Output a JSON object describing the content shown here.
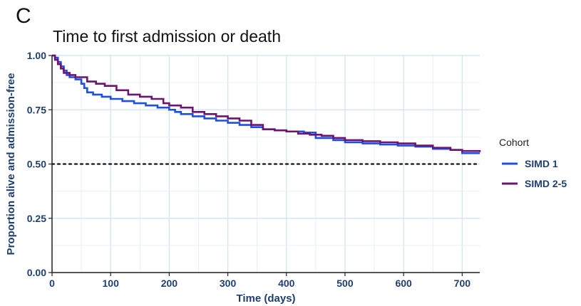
{
  "panel_label": "C",
  "chart_data": {
    "type": "line",
    "title": "Time to first admission or death",
    "xlabel": "Time (days)",
    "ylabel": "Proportion alive and admission-free",
    "xlim": [
      0,
      730
    ],
    "ylim": [
      0,
      1
    ],
    "x_ticks": [
      0,
      100,
      200,
      300,
      400,
      500,
      600,
      700
    ],
    "y_ticks": [
      0.0,
      0.25,
      0.5,
      0.75,
      1.0
    ],
    "y_tick_labels": [
      "0.00",
      "0.25",
      "0.50",
      "0.75",
      "1.00"
    ],
    "x_tick_labels": [
      "0",
      "100",
      "200",
      "300",
      "400",
      "500",
      "600",
      "700"
    ],
    "grid": true,
    "reference_line": {
      "y": 0.5,
      "style": "dotted",
      "color": "#111111"
    },
    "legend": {
      "title": "Cohort",
      "position": "right"
    },
    "series": [
      {
        "name": "SIMD 1",
        "color": "#1f4fe0",
        "step": true,
        "x": [
          0,
          5,
          10,
          15,
          20,
          25,
          30,
          40,
          50,
          55,
          60,
          70,
          85,
          100,
          120,
          140,
          160,
          180,
          200,
          210,
          220,
          240,
          260,
          280,
          300,
          320,
          340,
          360,
          380,
          400,
          430,
          450,
          480,
          500,
          530,
          560,
          590,
          620,
          650,
          680,
          700,
          730
        ],
        "y": [
          1.0,
          0.99,
          0.97,
          0.95,
          0.93,
          0.91,
          0.9,
          0.89,
          0.87,
          0.85,
          0.83,
          0.82,
          0.81,
          0.8,
          0.79,
          0.78,
          0.77,
          0.76,
          0.75,
          0.74,
          0.73,
          0.72,
          0.71,
          0.7,
          0.69,
          0.68,
          0.67,
          0.66,
          0.655,
          0.65,
          0.645,
          0.62,
          0.61,
          0.6,
          0.595,
          0.59,
          0.585,
          0.58,
          0.57,
          0.565,
          0.55,
          0.55
        ]
      },
      {
        "name": "SIMD 2-5",
        "color": "#6d1470",
        "step": true,
        "x": [
          0,
          5,
          10,
          15,
          20,
          30,
          40,
          60,
          75,
          90,
          110,
          130,
          150,
          170,
          190,
          200,
          220,
          240,
          260,
          280,
          300,
          320,
          340,
          360,
          380,
          400,
          420,
          440,
          460,
          480,
          500,
          530,
          560,
          590,
          620,
          650,
          680,
          700,
          730
        ],
        "y": [
          1.0,
          0.98,
          0.96,
          0.94,
          0.92,
          0.91,
          0.9,
          0.88,
          0.87,
          0.86,
          0.84,
          0.82,
          0.81,
          0.8,
          0.78,
          0.77,
          0.76,
          0.74,
          0.73,
          0.72,
          0.71,
          0.7,
          0.68,
          0.66,
          0.655,
          0.65,
          0.64,
          0.635,
          0.63,
          0.62,
          0.61,
          0.605,
          0.6,
          0.595,
          0.585,
          0.575,
          0.565,
          0.56,
          0.555
        ]
      }
    ]
  }
}
